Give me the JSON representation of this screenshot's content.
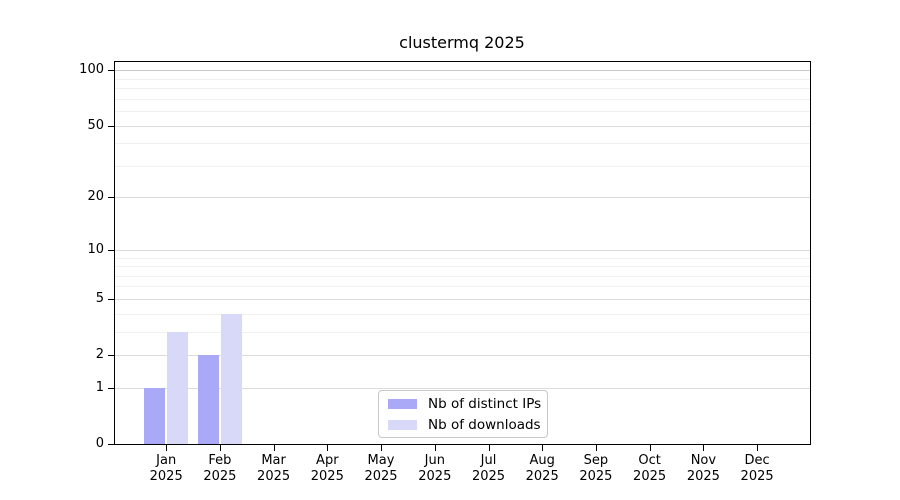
{
  "chart_data": {
    "type": "bar",
    "title": "clustermq 2025",
    "categories": [
      "Jan",
      "Feb",
      "Mar",
      "Apr",
      "May",
      "Jun",
      "Jul",
      "Aug",
      "Sep",
      "Oct",
      "Nov",
      "Dec"
    ],
    "category_year": "2025",
    "series": [
      {
        "name": "Nb of distinct IPs",
        "color": "#a9a9f8",
        "values": [
          1,
          2,
          0,
          0,
          0,
          0,
          0,
          0,
          0,
          0,
          0,
          0
        ]
      },
      {
        "name": "Nb of downloads",
        "color": "#d8d8f8",
        "values": [
          3,
          4,
          0,
          0,
          0,
          0,
          0,
          0,
          0,
          0,
          0,
          0
        ]
      }
    ],
    "y_axis": {
      "scale": "log1p",
      "ticks": [
        0,
        1,
        2,
        5,
        10,
        20,
        50,
        100
      ],
      "minor_gridlines": [
        3,
        4,
        6,
        7,
        8,
        9,
        30,
        40,
        60,
        70,
        80,
        90
      ],
      "range": [
        0,
        112
      ]
    },
    "x_axis": {
      "label_lines": 2
    },
    "legend": {
      "position": "bottom-center",
      "entries": [
        "Nb of distinct IPs",
        "Nb of downloads"
      ]
    },
    "colors": {
      "axis": "#000000",
      "grid_major": "#dcdcdc",
      "grid_minor": "#f0f0f0",
      "grid_top": "#c8c8c8",
      "background": "#ffffff"
    }
  }
}
